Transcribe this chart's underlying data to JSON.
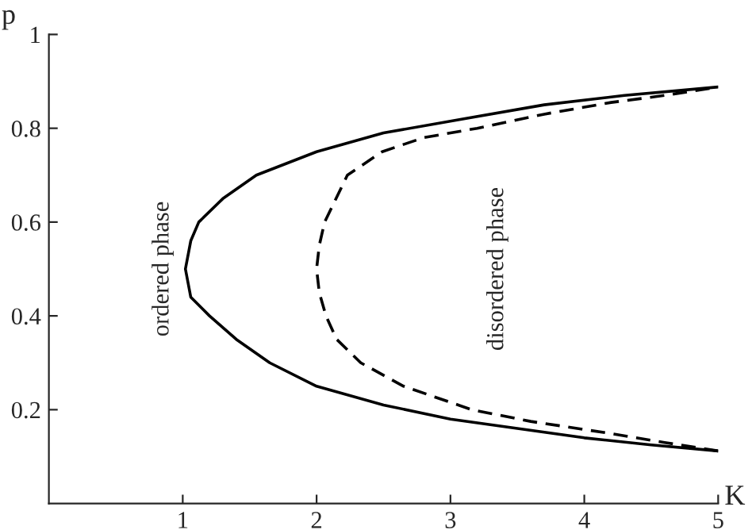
{
  "chart_data": {
    "type": "line",
    "xlabel": "K",
    "ylabel": "p",
    "xlim": [
      0,
      5
    ],
    "ylim": [
      0,
      1
    ],
    "xticks": [
      1,
      2,
      3,
      4,
      5
    ],
    "yticks": [
      0.2,
      0.4,
      0.6,
      0.8,
      1
    ],
    "grid": false,
    "legend": false,
    "marker": "none",
    "series": [
      {
        "color": "#000000",
        "line_style": "solid",
        "x": [
          5,
          4.5,
          4.0,
          3.5,
          3.0,
          2.5,
          2.0,
          1.65,
          1.4,
          1.2,
          1.06,
          1.02,
          1.06,
          1.12,
          1.3,
          1.55,
          2.0,
          2.5,
          3.1,
          3.7,
          4.3,
          5
        ],
        "values": [
          0.112,
          0.125,
          0.14,
          0.16,
          0.18,
          0.21,
          0.25,
          0.3,
          0.35,
          0.4,
          0.44,
          0.5,
          0.56,
          0.6,
          0.65,
          0.7,
          0.75,
          0.79,
          0.82,
          0.85,
          0.87,
          0.888
        ]
      },
      {
        "color": "#000000",
        "line_style": "dashed",
        "x": [
          5,
          4.6,
          4.18,
          3.6,
          3.16,
          2.65,
          2.33,
          2.15,
          2.07,
          2.02,
          2.0,
          2.02,
          2.06,
          2.23,
          2.49,
          2.8,
          3.2,
          3.7,
          4.2,
          4.6,
          5
        ],
        "values": [
          0.112,
          0.13,
          0.15,
          0.175,
          0.2,
          0.25,
          0.3,
          0.35,
          0.4,
          0.45,
          0.5,
          0.55,
          0.6,
          0.7,
          0.75,
          0.78,
          0.8,
          0.83,
          0.855,
          0.87,
          0.888
        ]
      }
    ],
    "annotations": [
      "ordered phase",
      "disordered phase"
    ]
  }
}
